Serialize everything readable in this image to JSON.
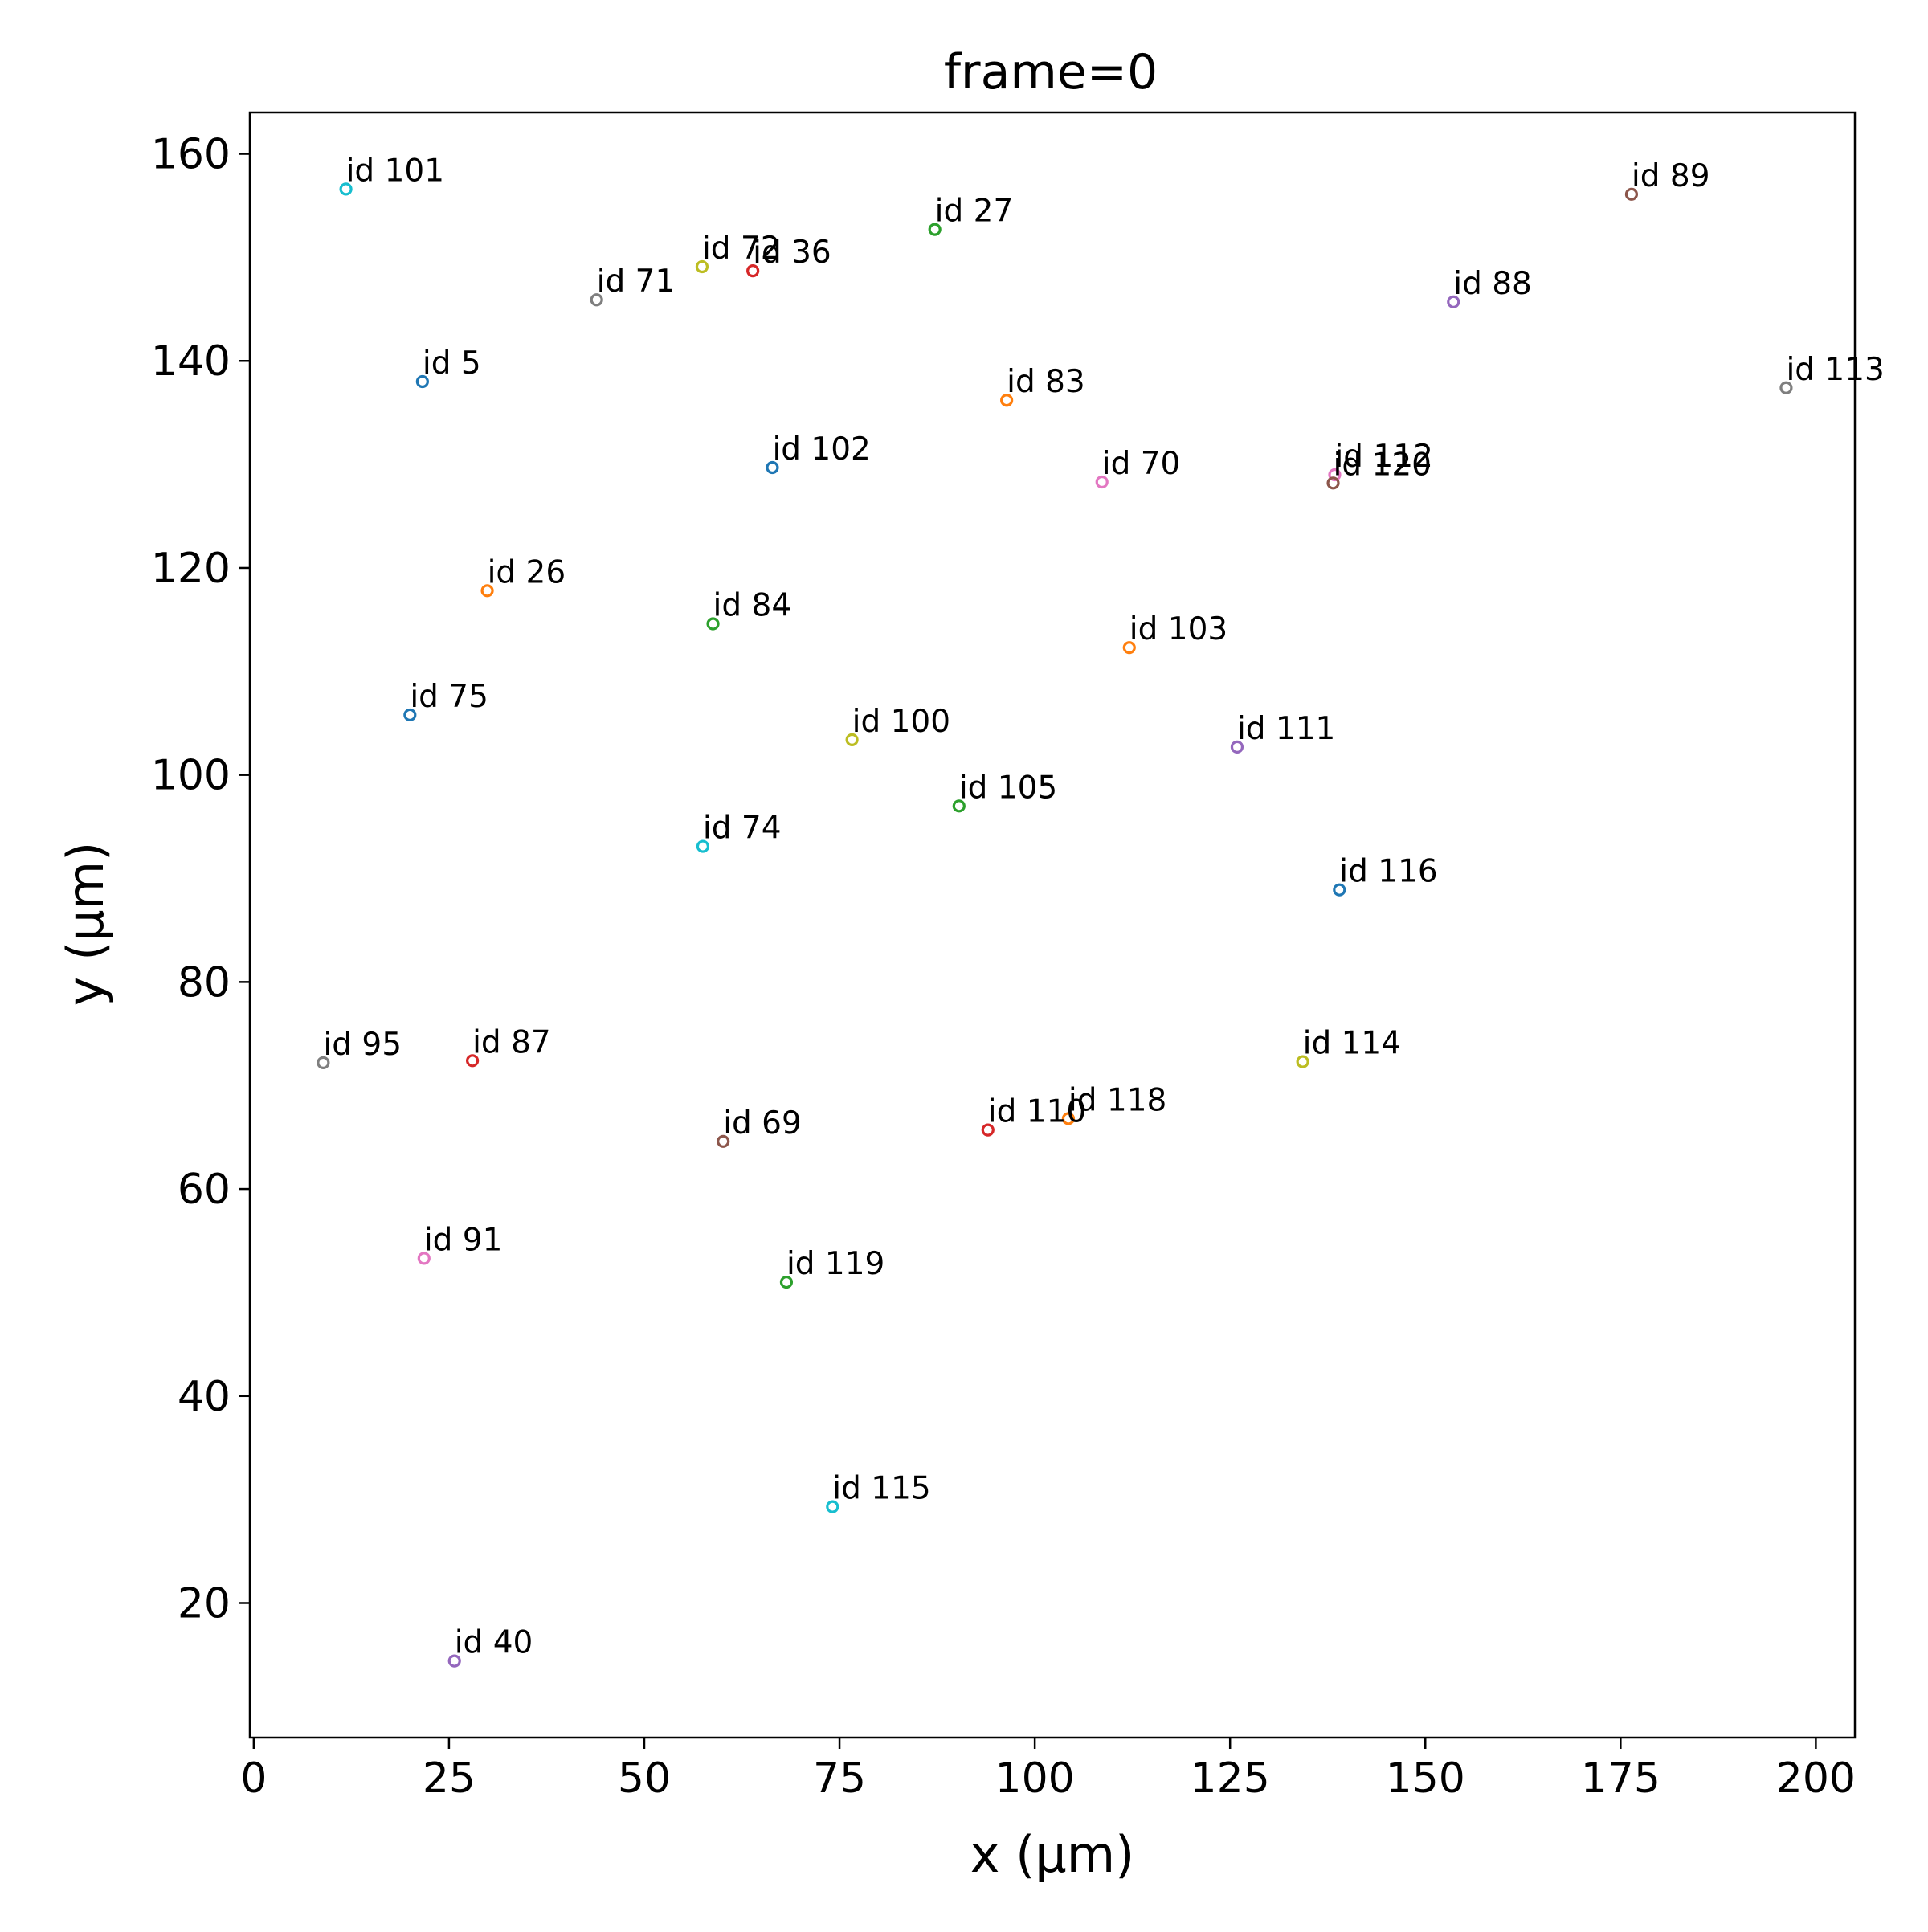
{
  "chart_data": {
    "type": "scatter",
    "title": "frame=0",
    "xlabel": "x (μm)",
    "ylabel": "y (μm)",
    "xlim": [
      -0.5,
      205
    ],
    "ylim": [
      7,
      164
    ],
    "xticks": [
      0,
      25,
      50,
      75,
      100,
      125,
      150,
      175,
      200
    ],
    "yticks": [
      20,
      40,
      60,
      80,
      100,
      120,
      140,
      160
    ],
    "grid": false,
    "marker": "open-circle",
    "points": [
      {
        "label": "id 101",
        "x": 11.8,
        "y": 156.6,
        "color": "#17becf"
      },
      {
        "label": "id 89",
        "x": 176.4,
        "y": 156.1,
        "color": "#8c564b"
      },
      {
        "label": "id 27",
        "x": 87.2,
        "y": 152.7,
        "color": "#2ca02c"
      },
      {
        "label": "id 72",
        "x": 57.4,
        "y": 149.1,
        "color": "#bcbd22"
      },
      {
        "label": "id 36",
        "x": 63.9,
        "y": 148.7,
        "color": "#d62728"
      },
      {
        "label": "id 71",
        "x": 43.9,
        "y": 145.9,
        "color": "#7f7f7f"
      },
      {
        "label": "id 88",
        "x": 153.6,
        "y": 145.7,
        "color": "#9467bd"
      },
      {
        "label": "id 5",
        "x": 21.6,
        "y": 138.0,
        "color": "#1f77b4"
      },
      {
        "label": "id 113",
        "x": 196.2,
        "y": 137.4,
        "color": "#7f7f7f"
      },
      {
        "label": "id 83",
        "x": 96.4,
        "y": 136.2,
        "color": "#ff7f0e"
      },
      {
        "label": "id 102",
        "x": 66.4,
        "y": 129.7,
        "color": "#1f77b4"
      },
      {
        "label": "id 70",
        "x": 108.6,
        "y": 128.3,
        "color": "#e377c2"
      },
      {
        "label": "id 112",
        "x": 138.4,
        "y": 129.0,
        "color": "#e377c2"
      },
      {
        "label": "id 120",
        "x": 138.2,
        "y": 128.2,
        "color": "#8c564b"
      },
      {
        "label": "id 26",
        "x": 29.9,
        "y": 117.8,
        "color": "#ff7f0e"
      },
      {
        "label": "id 84",
        "x": 58.8,
        "y": 114.6,
        "color": "#2ca02c"
      },
      {
        "label": "id 103",
        "x": 112.1,
        "y": 112.3,
        "color": "#ff7f0e"
      },
      {
        "label": "id 75",
        "x": 20.0,
        "y": 105.8,
        "color": "#1f77b4"
      },
      {
        "label": "id 100",
        "x": 76.6,
        "y": 103.4,
        "color": "#bcbd22"
      },
      {
        "label": "id 111",
        "x": 125.9,
        "y": 102.7,
        "color": "#9467bd"
      },
      {
        "label": "id 105",
        "x": 90.3,
        "y": 97.0,
        "color": "#2ca02c"
      },
      {
        "label": "id 74",
        "x": 57.5,
        "y": 93.1,
        "color": "#17becf"
      },
      {
        "label": "id 116",
        "x": 139.0,
        "y": 88.9,
        "color": "#1f77b4"
      },
      {
        "label": "id 95",
        "x": 8.9,
        "y": 72.2,
        "color": "#7f7f7f"
      },
      {
        "label": "id 87",
        "x": 28.0,
        "y": 72.4,
        "color": "#d62728"
      },
      {
        "label": "id 114",
        "x": 134.3,
        "y": 72.3,
        "color": "#bcbd22"
      },
      {
        "label": "id 118",
        "x": 104.3,
        "y": 66.8,
        "color": "#ff7f0e"
      },
      {
        "label": "id 110",
        "x": 94.0,
        "y": 65.7,
        "color": "#d62728"
      },
      {
        "label": "id 69",
        "x": 60.1,
        "y": 64.6,
        "color": "#8c564b"
      },
      {
        "label": "id 91",
        "x": 21.8,
        "y": 53.3,
        "color": "#e377c2"
      },
      {
        "label": "id 119",
        "x": 68.2,
        "y": 51.0,
        "color": "#2ca02c"
      },
      {
        "label": "id 115",
        "x": 74.1,
        "y": 29.3,
        "color": "#17becf"
      },
      {
        "label": "id 40",
        "x": 25.7,
        "y": 14.4,
        "color": "#9467bd"
      }
    ]
  }
}
